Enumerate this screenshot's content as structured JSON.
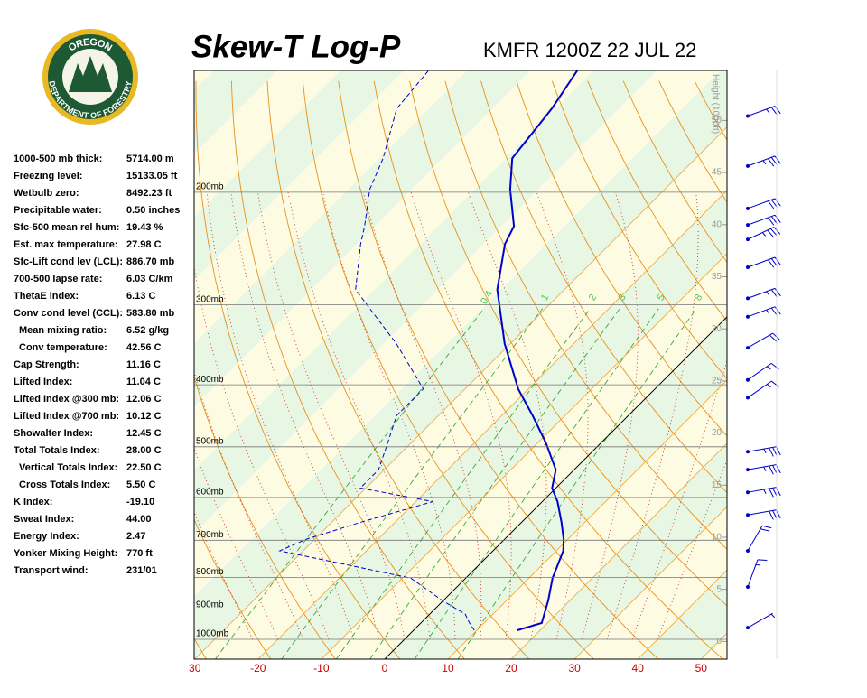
{
  "header": {
    "title": "Skew-T Log-P",
    "station": "KMFR 1200Z 22 JUL 22"
  },
  "logo": {
    "top": "OREGON",
    "bottom": "DEPARTMENT OF FORESTRY"
  },
  "indices": [
    {
      "label": "1000-500 mb thick:",
      "value": "5714.00 m"
    },
    {
      "label": "Freezing level:",
      "value": "15133.05 ft"
    },
    {
      "label": "Wetbulb zero:",
      "value": "8492.23 ft"
    },
    {
      "label": "Precipitable water:",
      "value": "0.50 inches"
    },
    {
      "label": "Sfc-500 mean rel hum:",
      "value": "19.43 %"
    },
    {
      "label": "Est. max temperature:",
      "value": "27.98 C"
    },
    {
      "label": "Sfc-Lift cond lev (LCL):",
      "value": "886.70 mb"
    },
    {
      "label": "700-500 lapse rate:",
      "value": "6.03 C/km"
    },
    {
      "label": "ThetaE index:",
      "value": "6.13 C"
    },
    {
      "label": "Conv cond level (CCL):",
      "value": "583.80 mb"
    },
    {
      "label": "Mean mixing ratio:",
      "value": "6.52 g/kg"
    },
    {
      "label": "Conv temperature:",
      "value": "42.56 C"
    },
    {
      "label": "Cap Strength:",
      "value": "11.16 C"
    },
    {
      "label": "Lifted Index:",
      "value": "11.04 C"
    },
    {
      "label": "Lifted Index @300 mb:",
      "value": "12.06 C"
    },
    {
      "label": "Lifted Index @700 mb:",
      "value": "10.12 C"
    },
    {
      "label": "Showalter Index:",
      "value": "12.45 C"
    },
    {
      "label": "Total Totals Index:",
      "value": "28.00 C"
    },
    {
      "label": "Vertical Totals Index:",
      "value": "22.50 C"
    },
    {
      "label": "Cross Totals Index:",
      "value": "5.50 C"
    },
    {
      "label": "K Index:",
      "value": "-19.10"
    },
    {
      "label": "Sweat Index:",
      "value": "44.00"
    },
    {
      "label": "Energy Index:",
      "value": "2.47"
    },
    {
      "label": "Yonker Mixing Height:",
      "value": "770 ft"
    },
    {
      "label": "Transport wind:",
      "value": "231/01"
    }
  ],
  "chart_data": {
    "type": "skewt",
    "xlim": [
      -30.1,
      54.1
    ],
    "xticks": [
      {
        "value": -30,
        "label": "30"
      },
      -20,
      -10,
      0,
      10,
      20,
      30,
      40,
      50
    ],
    "ylim": [
      1074,
      129
    ],
    "log_y": true,
    "yticks": [
      {
        "value": 1000,
        "label": "1000mb"
      },
      {
        "value": 900,
        "label": "900mb"
      },
      {
        "value": 800,
        "label": "800mb"
      },
      {
        "value": 700,
        "label": "700mb"
      },
      {
        "value": 600,
        "label": "600mb"
      },
      {
        "value": 500,
        "label": "500mb"
      },
      {
        "value": 400,
        "label": "400mb"
      },
      {
        "value": 300,
        "label": "300mb"
      },
      {
        "value": 200,
        "label": "200mb"
      }
    ],
    "y2label": "Height (1000ft)",
    "y2lim": [
      -1.7,
      54.8
    ],
    "y2ticks": [
      0,
      5,
      10,
      15,
      20,
      25,
      30,
      35,
      40,
      45,
      50
    ],
    "mixing_ratios": [
      0.4,
      1,
      2,
      3,
      5,
      8
    ],
    "pressure": [
      968,
      943,
      913,
      870,
      802,
      727,
      697,
      656,
      609,
      580,
      543,
      493,
      447,
      406,
      345,
      284,
      241,
      226,
      198,
      177,
      148,
      129
    ],
    "series": [
      {
        "name": "Temperature",
        "color": "#0000cc",
        "values": [
          16.4,
          19.1,
          18.1,
          16.6,
          13.7,
          11.1,
          9.3,
          6.3,
          2.4,
          -0.6,
          -2.9,
          -8.7,
          -15.1,
          -21.6,
          -30.9,
          -40.6,
          -46.6,
          -48.0,
          -54.4,
          -59.0,
          -60.6,
          -62.6
        ]
      },
      {
        "name": "Dewpoint",
        "color": "#0000cc",
        "values": [
          9.6,
          7.7,
          5.6,
          -0.1,
          -8.7,
          -33.7,
          -31.3,
          -25.4,
          -17.3,
          -30.9,
          -30.9,
          -33.7,
          -36.6,
          -36.6,
          -48.0,
          -63.0,
          -69.4,
          -71.6,
          -76.6,
          -79.4,
          -85.1,
          -86.1
        ]
      }
    ],
    "winds": {
      "pressure": [
        152,
        182,
        212,
        225,
        237,
        262,
        293,
        313,
        350,
        393,
        419,
        509,
        543,
        589,
        639,
        727,
        828,
        959
      ],
      "direction": [
        70,
        70,
        70,
        70,
        65,
        70,
        70,
        70,
        60,
        55,
        55,
        80,
        80,
        80,
        80,
        30,
        20,
        60
      ],
      "speed": [
        25,
        35,
        30,
        30,
        35,
        30,
        25,
        25,
        20,
        15,
        15,
        35,
        35,
        35,
        30,
        20,
        15,
        5
      ]
    }
  }
}
